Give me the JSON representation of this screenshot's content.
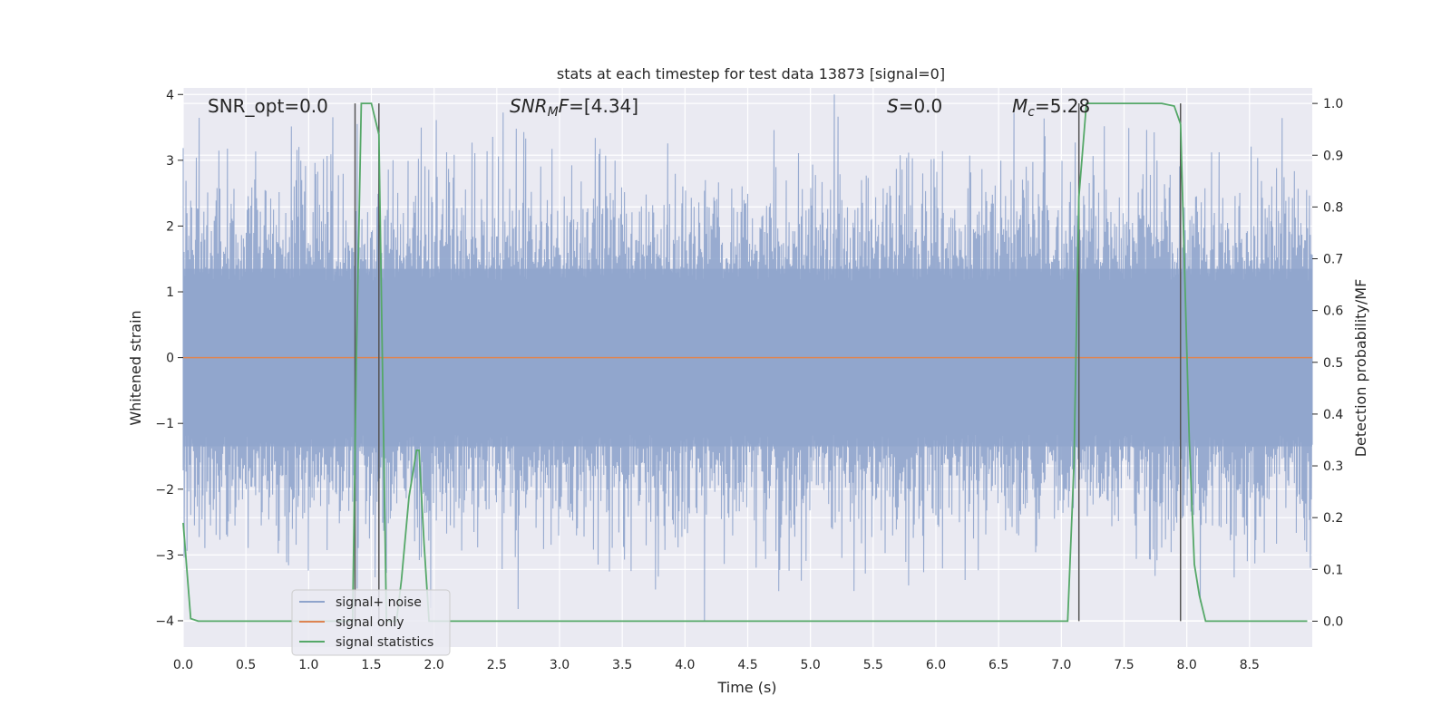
{
  "chart_data": {
    "type": "line",
    "title": "stats at each timestep for test data 13873 [signal=0]",
    "xlabel": "Time (s)",
    "ylabel": "Whitened strain",
    "y2label": "Detection probability/MF",
    "xlim": [
      0,
      9.0
    ],
    "ylim": [
      -4.4,
      4.1
    ],
    "y2lim": [
      -0.05,
      1.03
    ],
    "xticks": [
      "0.0",
      "0.5",
      "1.0",
      "1.5",
      "2.0",
      "2.5",
      "3.0",
      "3.5",
      "4.0",
      "4.5",
      "5.0",
      "5.5",
      "6.0",
      "6.5",
      "7.0",
      "7.5",
      "8.0",
      "8.5"
    ],
    "yticks": [
      "4",
      "3",
      "2",
      "1",
      "0",
      "−1",
      "−2",
      "−3",
      "−4"
    ],
    "y2ticks": [
      "1.0",
      "0.9",
      "0.8",
      "0.7",
      "0.6",
      "0.5",
      "0.4",
      "0.3",
      "0.2",
      "0.1",
      "0.0"
    ],
    "grid": true,
    "legend_position": "lower-left",
    "annotations": [
      {
        "id": "snr-opt",
        "text": "SNR_opt=0.0",
        "x": 0.2
      },
      {
        "id": "snr-mf",
        "text": "SNR_MF=[4.34]",
        "x": 2.6
      },
      {
        "id": "s",
        "text": "S=0.0",
        "x": 5.6
      },
      {
        "id": "mc",
        "text": "M_c=5.28",
        "x": 6.6
      }
    ],
    "series": [
      {
        "name": "signal+ noise",
        "color": "#8fa4cc",
        "kind": "noise",
        "amplitude_typical": 1.3,
        "amplitude_max": 4.0
      },
      {
        "name": "signal only",
        "color": "#dd8452",
        "values_const": 0.0
      },
      {
        "name": "signal statistics",
        "color": "#55a868",
        "axis": "right",
        "x": [
          0.0,
          0.06,
          0.12,
          1.35,
          1.38,
          1.42,
          1.5,
          1.56,
          1.62,
          1.66,
          1.7,
          1.74,
          1.8,
          1.86,
          1.88,
          1.92,
          1.96,
          2.0,
          7.05,
          7.1,
          7.14,
          7.2,
          7.3,
          7.8,
          7.9,
          7.95,
          7.98,
          8.02,
          8.06,
          8.1,
          8.15,
          8.96
        ],
        "values": [
          0.19,
          0.005,
          0.0,
          0.0,
          0.5,
          1.0,
          1.0,
          0.94,
          0.0,
          0.0,
          0.0,
          0.08,
          0.24,
          0.33,
          0.33,
          0.15,
          0.0,
          0.0,
          0.0,
          0.3,
          0.82,
          1.0,
          1.0,
          1.0,
          0.995,
          0.96,
          0.7,
          0.35,
          0.11,
          0.05,
          0.0,
          0.0
        ]
      }
    ],
    "vertical_lines": [
      1.37,
      1.56,
      7.14,
      7.95
    ]
  }
}
